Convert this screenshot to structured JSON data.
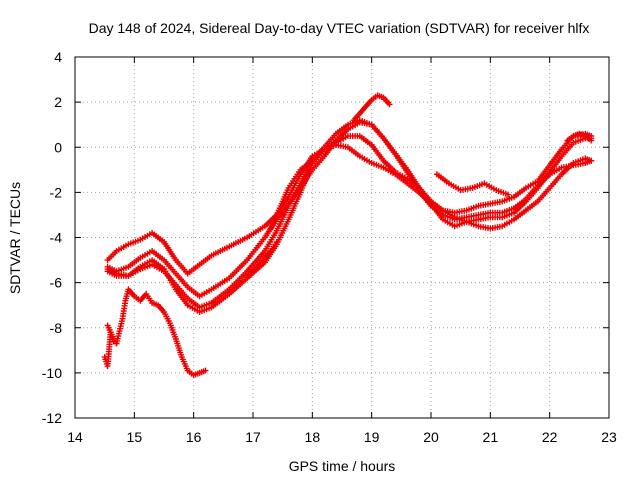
{
  "chart_data": {
    "type": "scatter",
    "title": "Day 148 of 2024, Sidereal Day-to-day VTEC variation (SDTVAR) for receiver hlfx",
    "xlabel": "GPS time / hours",
    "ylabel": "SDTVAR / TECUs",
    "xlim": [
      14,
      23
    ],
    "ylim": [
      -12,
      4
    ],
    "xticks": [
      14,
      15,
      16,
      17,
      18,
      19,
      20,
      21,
      22,
      23
    ],
    "yticks": [
      -12,
      -10,
      -8,
      -6,
      -4,
      -2,
      0,
      2,
      4
    ],
    "grid": true,
    "marker": "+",
    "color": "#ee0000",
    "series": [
      {
        "name": "track-a",
        "x": [
          14.55,
          14.7,
          14.9,
          15.1,
          15.3,
          15.5,
          15.7,
          15.9,
          16.1,
          16.3,
          16.6,
          16.9,
          17.2,
          17.4,
          17.6,
          17.8,
          18.0,
          18.2,
          18.4,
          18.6,
          18.8,
          19.0,
          19.2,
          19.4,
          19.6,
          19.8,
          20.0,
          20.2,
          20.4,
          20.6,
          20.8,
          21.0,
          21.2,
          21.4,
          21.6,
          21.8,
          22.0,
          22.2,
          22.4,
          22.6,
          22.7
        ],
        "y": [
          -5.0,
          -4.6,
          -4.3,
          -4.1,
          -3.8,
          -4.2,
          -5.0,
          -5.6,
          -5.2,
          -4.8,
          -4.4,
          -4.0,
          -3.5,
          -3.0,
          -2.2,
          -1.2,
          -0.4,
          -0.1,
          0.2,
          0.5,
          0.5,
          0.1,
          -0.6,
          -1.1,
          -1.4,
          -1.8,
          -2.4,
          -2.8,
          -2.9,
          -2.8,
          -2.6,
          -2.5,
          -2.4,
          -2.2,
          -1.8,
          -1.5,
          -0.8,
          -0.1,
          0.5,
          0.6,
          0.5
        ]
      },
      {
        "name": "track-b",
        "x": [
          14.55,
          14.7,
          14.9,
          15.1,
          15.3,
          15.5,
          15.7,
          15.9,
          16.1,
          16.3,
          16.6,
          16.9,
          17.2,
          17.4,
          17.6,
          17.8,
          18.0,
          18.2,
          18.4,
          18.6,
          18.8,
          19.0,
          19.2,
          19.4,
          19.6,
          19.8,
          20.0,
          20.2,
          20.4,
          20.6,
          20.8,
          21.0,
          21.2,
          21.4,
          21.6,
          21.8,
          22.0,
          22.2,
          22.4,
          22.6,
          22.7
        ],
        "y": [
          -5.3,
          -5.5,
          -5.3,
          -4.9,
          -4.6,
          -5.0,
          -5.6,
          -6.2,
          -6.6,
          -6.3,
          -5.8,
          -5.0,
          -4.0,
          -3.2,
          -2.5,
          -1.8,
          -1.0,
          -0.4,
          0.3,
          0.8,
          1.1,
          1.0,
          0.4,
          -0.3,
          -1.0,
          -1.8,
          -2.5,
          -3.2,
          -3.5,
          -3.3,
          -3.2,
          -3.1,
          -3.1,
          -2.9,
          -2.4,
          -1.8,
          -1.1,
          -0.4,
          0.2,
          0.4,
          0.4
        ]
      },
      {
        "name": "track-c",
        "x": [
          14.55,
          14.7,
          14.9,
          15.1,
          15.3,
          15.5,
          15.7,
          15.9,
          16.1,
          16.3,
          16.6,
          16.9,
          17.2,
          17.4,
          17.6,
          17.8,
          18.0,
          18.2,
          18.4,
          18.6,
          18.8,
          19.0,
          19.2,
          19.4,
          19.6,
          19.8,
          20.0,
          20.2,
          20.4,
          20.6,
          20.8,
          21.0,
          21.2,
          21.4,
          21.6,
          21.8,
          22.0,
          22.2,
          22.4,
          22.6,
          22.7
        ],
        "y": [
          -5.4,
          -5.6,
          -5.7,
          -5.4,
          -5.2,
          -5.5,
          -6.1,
          -6.7,
          -7.1,
          -6.9,
          -6.3,
          -5.5,
          -4.6,
          -3.7,
          -2.6,
          -1.6,
          -0.6,
          0.0,
          0.6,
          1.0,
          1.2,
          1.0,
          0.4,
          -0.3,
          -1.1,
          -1.9,
          -2.6,
          -3.0,
          -3.2,
          -3.1,
          -3.0,
          -2.9,
          -2.9,
          -2.7,
          -2.3,
          -1.7,
          -1.2,
          -0.9,
          -0.8,
          -0.7,
          -0.6
        ]
      },
      {
        "name": "track-d",
        "x": [
          14.55,
          14.7,
          14.9,
          15.1,
          15.3,
          15.5,
          15.7,
          15.9,
          16.1,
          16.3,
          16.6,
          16.9,
          17.2,
          17.4,
          17.6,
          17.8,
          18.0,
          18.2,
          18.4,
          18.6,
          18.8,
          19.0,
          19.2,
          19.4,
          19.6,
          19.8,
          20.0,
          20.2,
          20.4,
          20.6,
          20.8,
          21.0,
          21.2,
          21.4,
          21.6,
          21.8,
          22.0,
          22.2,
          22.4,
          22.6,
          22.7
        ],
        "y": [
          -5.5,
          -5.7,
          -5.7,
          -5.3,
          -5.0,
          -5.4,
          -6.3,
          -7.0,
          -7.3,
          -7.1,
          -6.5,
          -5.8,
          -5.1,
          -4.3,
          -3.2,
          -2.0,
          -0.7,
          -0.1,
          0.1,
          0.0,
          -0.4,
          -0.7,
          -0.9,
          -1.2,
          -1.6,
          -2.0,
          -2.5,
          -2.8,
          -3.1,
          -3.3,
          -3.5,
          -3.6,
          -3.5,
          -3.2,
          -2.8,
          -2.4,
          -1.8,
          -1.2,
          -0.7,
          -0.5,
          -0.6
        ]
      },
      {
        "name": "track-e",
        "x": [
          14.5,
          14.55,
          14.6,
          14.65,
          14.7,
          14.8,
          14.85,
          14.9,
          15.0,
          15.1,
          15.2,
          15.3,
          15.4,
          15.5,
          15.6,
          15.7,
          15.8,
          15.9,
          16.0,
          16.1,
          16.2
        ],
        "y": [
          -9.3,
          -9.7,
          -8.2,
          -8.6,
          -8.7,
          -7.6,
          -6.8,
          -6.3,
          -6.6,
          -6.8,
          -6.5,
          -6.9,
          -7.0,
          -7.3,
          -7.8,
          -8.5,
          -9.3,
          -9.9,
          -10.1,
          -10.0,
          -9.9
        ]
      },
      {
        "name": "track-f",
        "x": [
          14.55,
          14.6,
          14.65,
          14.7
        ],
        "y": [
          -7.9,
          -8.2,
          -8.5,
          -8.7
        ]
      },
      {
        "name": "track-g",
        "x": [
          16.9,
          17.0,
          17.1,
          17.2,
          17.3,
          17.4
        ],
        "y": [
          -5.7,
          -5.5,
          -5.2,
          -4.9,
          -4.6,
          -4.2
        ]
      },
      {
        "name": "track-h",
        "x": [
          17.3,
          17.4,
          17.5,
          17.6,
          17.7,
          17.8,
          17.9,
          18.0
        ],
        "y": [
          -3.6,
          -3.0,
          -2.4,
          -1.8,
          -1.4,
          -1.0,
          -0.8,
          -0.6
        ]
      },
      {
        "name": "track-i",
        "x": [
          18.7,
          18.8,
          18.9,
          19.0,
          19.1,
          19.2,
          19.3
        ],
        "y": [
          1.2,
          1.5,
          1.8,
          2.1,
          2.3,
          2.2,
          1.9
        ]
      },
      {
        "name": "track-j",
        "x": [
          20.1,
          20.3,
          20.5,
          20.7,
          20.9,
          21.1,
          21.3
        ],
        "y": [
          -1.2,
          -1.6,
          -1.9,
          -1.8,
          -1.6,
          -1.9,
          -2.1
        ]
      },
      {
        "name": "track-k",
        "x": [
          22.3,
          22.4,
          22.5,
          22.6,
          22.7
        ],
        "y": [
          0.3,
          0.5,
          0.6,
          0.5,
          0.3
        ]
      }
    ]
  }
}
